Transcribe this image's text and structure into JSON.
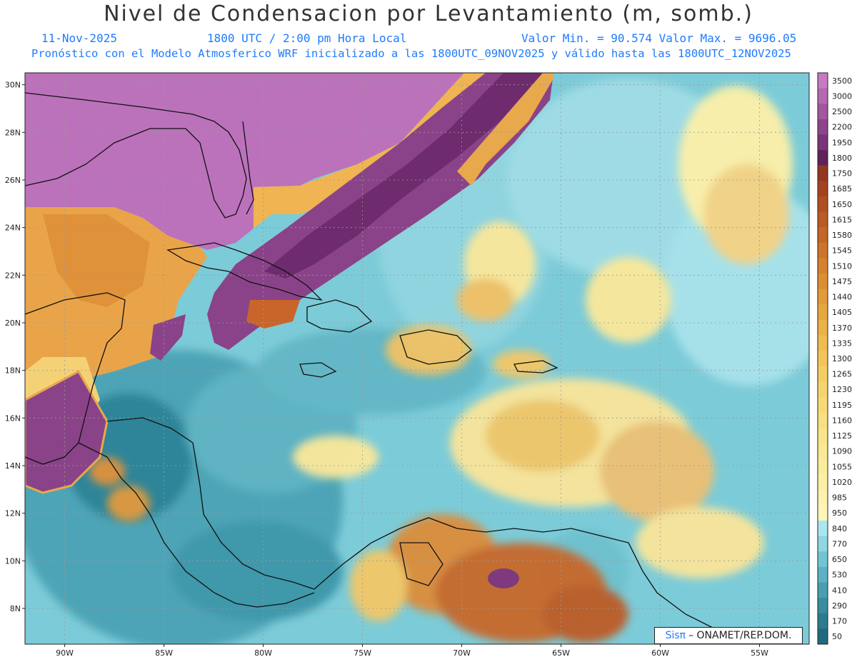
{
  "header": {
    "title": "Nivel de Condensacion por Levantamiento (m, somb.)",
    "date": "11-Nov-2025",
    "time": "1800 UTC / 2:00 pm Hora Local",
    "minmax": "Valor Min. = 90.574  Valor Max. = 9696.05",
    "forecast": "Pronóstico con el Modelo Atmosferico WRF inicializado a las 1800UTC_09NOV2025 y válido hasta las  1800UTC_12NOV2025"
  },
  "map": {
    "lat_labels": [
      "30N",
      "28N",
      "26N",
      "24N",
      "22N",
      "20N",
      "18N",
      "16N",
      "14N",
      "12N",
      "10N",
      "8N"
    ],
    "lon_labels": [
      "90W",
      "85W",
      "80W",
      "75W",
      "70W",
      "65W",
      "60W",
      "55W"
    ],
    "extent": {
      "lon_min": -92,
      "lon_max": -52.5,
      "lat_min": 6.5,
      "lat_max": 30.5
    }
  },
  "colorbar": {
    "levels": [
      "3500",
      "3000",
      "2500",
      "2200",
      "1950",
      "1800",
      "1750",
      "1685",
      "1650",
      "1615",
      "1580",
      "1545",
      "1510",
      "1475",
      "1440",
      "1405",
      "1370",
      "1335",
      "1300",
      "1265",
      "1230",
      "1195",
      "1160",
      "1125",
      "1090",
      "1055",
      "1020",
      "985",
      "950",
      "840",
      "770",
      "650",
      "530",
      "410",
      "290",
      "170",
      "50"
    ],
    "colors": [
      "#c77ac3",
      "#b468b2",
      "#a2579f",
      "#8d458c",
      "#7a3478",
      "#5f2358",
      "#94371f",
      "#a6431f",
      "#b14f21",
      "#bb5b23",
      "#c46726",
      "#cd742a",
      "#d5812e",
      "#dc8e33",
      "#e29b39",
      "#e7a740",
      "#ebb249",
      "#efbc52",
      "#f2c55b",
      "#f4cd64",
      "#f6d46e",
      "#f7da77",
      "#f8df81",
      "#f9e48a",
      "#fae893",
      "#fbec9c",
      "#fcefa5",
      "#fdf2ae",
      "#fef6b8",
      "#a9e7ef",
      "#8dd6e2",
      "#73c4d3",
      "#5cb2c3",
      "#489fb1",
      "#388d9f",
      "#2b7c8e",
      "#1f6b7e"
    ]
  },
  "credit": {
    "brand": "Sisπ",
    "text": "– ONAMET/REP.DOM."
  }
}
